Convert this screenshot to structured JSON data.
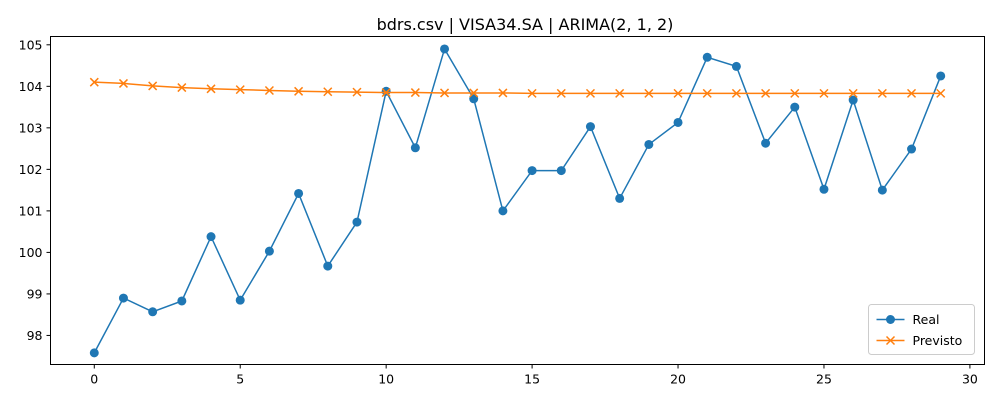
{
  "chart_data": {
    "type": "line",
    "title": "bdrs.csv | VISA34.SA | ARIMA(2, 1, 2)",
    "xlabel": "",
    "ylabel": "",
    "xlim": [
      -1.5,
      30.5
    ],
    "ylim": [
      97.3,
      105.2
    ],
    "xticks": [
      0,
      5,
      10,
      15,
      20,
      25,
      30
    ],
    "yticks": [
      98,
      99,
      100,
      101,
      102,
      103,
      104,
      105
    ],
    "grid": false,
    "legend_position": "lower-right",
    "x": [
      0,
      1,
      2,
      3,
      4,
      5,
      6,
      7,
      8,
      9,
      10,
      11,
      12,
      13,
      14,
      15,
      16,
      17,
      18,
      19,
      20,
      21,
      22,
      23,
      24,
      25,
      26,
      27,
      28,
      29
    ],
    "series": [
      {
        "name": "Real",
        "color": "#1f77b4",
        "marker": "circle",
        "values": [
          97.58,
          98.9,
          98.57,
          98.83,
          100.38,
          98.85,
          100.03,
          101.42,
          99.67,
          100.73,
          103.88,
          102.52,
          104.9,
          103.7,
          101.0,
          101.97,
          101.97,
          103.03,
          101.3,
          102.6,
          103.13,
          104.7,
          104.48,
          102.63,
          103.5,
          101.52,
          103.67,
          101.5,
          102.49,
          104.25
        ]
      },
      {
        "name": "Previsto",
        "color": "#ff7f0e",
        "marker": "x",
        "values": [
          104.1,
          104.07,
          104.01,
          103.97,
          103.94,
          103.92,
          103.9,
          103.88,
          103.87,
          103.86,
          103.85,
          103.85,
          103.84,
          103.84,
          103.84,
          103.83,
          103.83,
          103.83,
          103.83,
          103.83,
          103.83,
          103.83,
          103.83,
          103.83,
          103.83,
          103.83,
          103.83,
          103.83,
          103.83,
          103.83
        ]
      }
    ]
  }
}
